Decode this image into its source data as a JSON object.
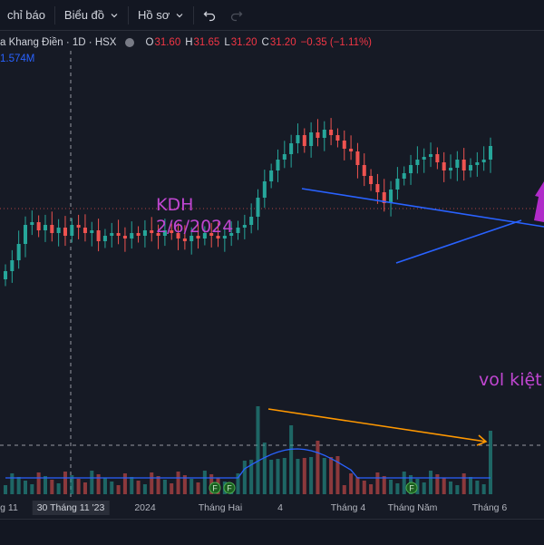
{
  "toolbar": {
    "indicators_label": "chỉ báo",
    "chart_type_label": "Biểu đồ",
    "profile_label": "Hồ sơ"
  },
  "legend": {
    "symbol": "a Khang Điền · 1D · HSX",
    "open_key": "O",
    "open": "31.60",
    "high_key": "H",
    "high": "31.65",
    "low_key": "L",
    "low": "31.20",
    "close_key": "C",
    "close": "31.20",
    "change": "−0.35 (−1.11%)",
    "volume": "1.574M"
  },
  "annotations": {
    "ticker": "KDH",
    "date": "2/6/2024",
    "volume_note": "vol kiệt"
  },
  "time_axis": {
    "labels": [
      "g 11",
      "30 Tháng 11 '23",
      "2024",
      "Tháng Hai",
      "4",
      "Tháng 4",
      "Tháng Năm",
      "Tháng 6"
    ]
  },
  "markers": [
    "F",
    "F",
    "F"
  ],
  "colors": {
    "background": "#161a25",
    "up": "#26a69a",
    "down": "#ef5350",
    "trendline": "#2962ff",
    "volume_trend": "#ff9800",
    "annotation": "#c046d1",
    "volume_ma": "#2962ff"
  },
  "chart_data": {
    "type": "candlestick",
    "price_axis": {
      "visible": false
    },
    "series": [
      {
        "name": "price",
        "close": [
          29.2,
          29.6,
          30.2,
          30.9,
          31.0,
          30.7,
          30.9,
          30.6,
          30.8,
          30.5,
          30.9,
          30.8,
          30.6,
          30.7,
          30.3,
          30.5,
          30.6,
          30.5,
          30.4,
          30.6,
          30.5,
          30.7,
          30.6,
          30.5,
          30.7,
          30.6,
          30.4,
          30.3,
          30.5,
          30.4,
          30.6,
          30.5,
          30.4,
          30.5,
          30.6,
          30.8,
          30.9,
          31.2,
          31.9,
          32.5,
          32.9,
          33.3,
          33.5,
          33.9,
          34.2,
          33.8,
          34.3,
          34.1,
          34.4,
          34.2,
          34.0,
          33.7,
          33.6,
          33.1,
          32.7,
          32.4,
          32.1,
          31.7,
          32.2,
          32.6,
          32.8,
          33.1,
          33.3,
          33.4,
          33.5,
          33.2,
          32.9,
          33.0,
          33.3,
          32.9,
          33.1,
          33.2,
          33.3,
          33.8
        ]
      }
    ]
  }
}
